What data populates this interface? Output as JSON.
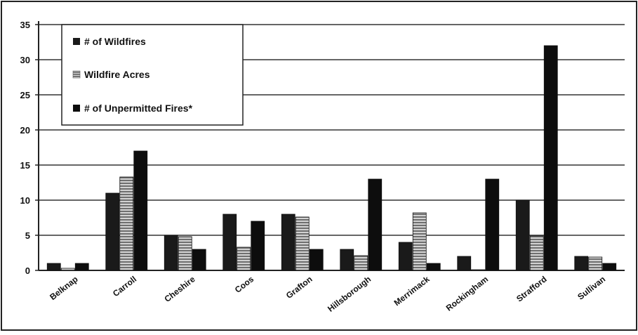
{
  "chart_data": {
    "type": "bar",
    "categories": [
      "Belknap",
      "Carroll",
      "Cheshire",
      "Coos",
      "Grafton",
      "Hillsborough",
      "Merrimack",
      "Rockingham",
      "Strafford",
      "Sullivan"
    ],
    "series": [
      {
        "name": "# of Wildfires",
        "values": [
          1,
          11,
          5,
          8,
          8,
          3,
          4,
          2,
          10,
          2
        ],
        "color": "#1a1a1a",
        "pattern": "solid"
      },
      {
        "name": "Wildfire Acres",
        "values": [
          0.3,
          13.3,
          4.8,
          3.3,
          7.6,
          2.1,
          8.2,
          0.1,
          4.9,
          1.9
        ],
        "color": "#9a9a9a",
        "pattern": "horizontal-stripes"
      },
      {
        "name": "# of Unpermitted Fires*",
        "values": [
          1,
          17,
          3,
          7,
          3,
          13,
          1,
          13,
          32,
          1
        ],
        "color": "#0d0d0d",
        "pattern": "solid"
      }
    ],
    "yticks": [
      "0",
      "5",
      "10",
      "15",
      "20",
      "25",
      "30",
      "35"
    ],
    "ylim": [
      0,
      35
    ],
    "grid": true,
    "legend_position": "top-left",
    "title": "",
    "xlabel": "",
    "ylabel": ""
  }
}
